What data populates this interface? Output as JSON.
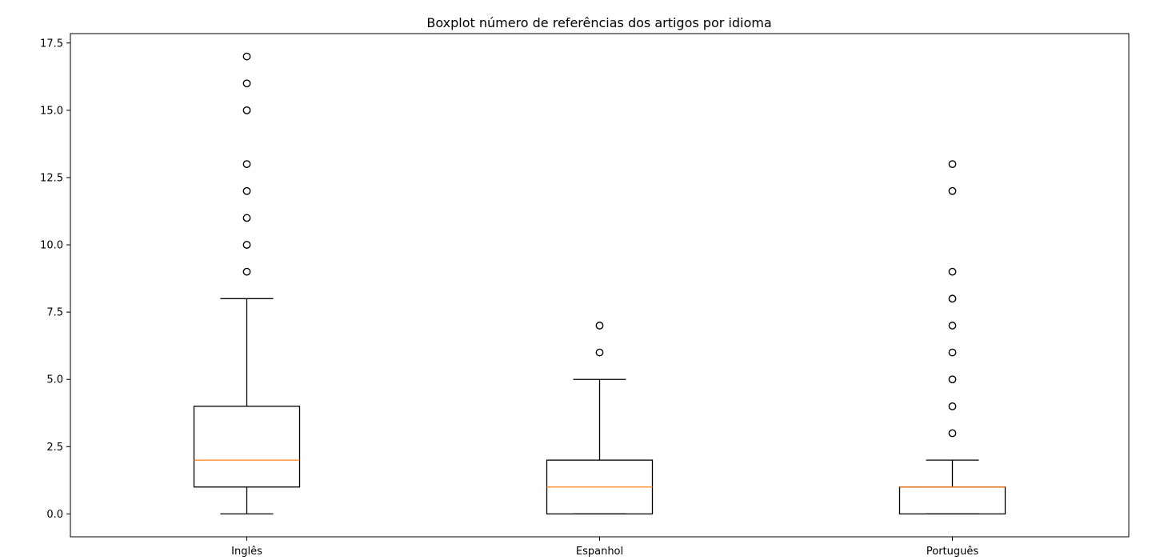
{
  "chart_data": {
    "type": "boxplot",
    "title": "Boxplot número de referências dos artigos por idioma",
    "xlabel": "",
    "ylabel": "",
    "ylim": [
      -0.85,
      17.85
    ],
    "yticks": [
      "0.0",
      "2.5",
      "5.0",
      "7.5",
      "10.0",
      "12.5",
      "15.0",
      "17.5"
    ],
    "grid": false,
    "categories": [
      "Inglês",
      "Espanhol",
      "Português"
    ],
    "boxes": [
      {
        "category": "Inglês",
        "whisker_low": 0,
        "q1": 1,
        "median": 2,
        "q3": 4,
        "whisker_high": 8,
        "outliers": [
          9,
          10,
          11,
          12,
          13,
          15,
          16,
          17
        ]
      },
      {
        "category": "Espanhol",
        "whisker_low": 0,
        "q1": 0,
        "median": 1,
        "q3": 2,
        "whisker_high": 5,
        "outliers": [
          6,
          7
        ]
      },
      {
        "category": "Português",
        "whisker_low": 0,
        "q1": 0,
        "median": 1,
        "q3": 1,
        "whisker_high": 2,
        "outliers": [
          3,
          4,
          5,
          6,
          7,
          8,
          9,
          12,
          13
        ]
      }
    ],
    "colors": {
      "box": "#000000",
      "median": "#ff7f0e",
      "outlier_edge": "#000000"
    }
  }
}
